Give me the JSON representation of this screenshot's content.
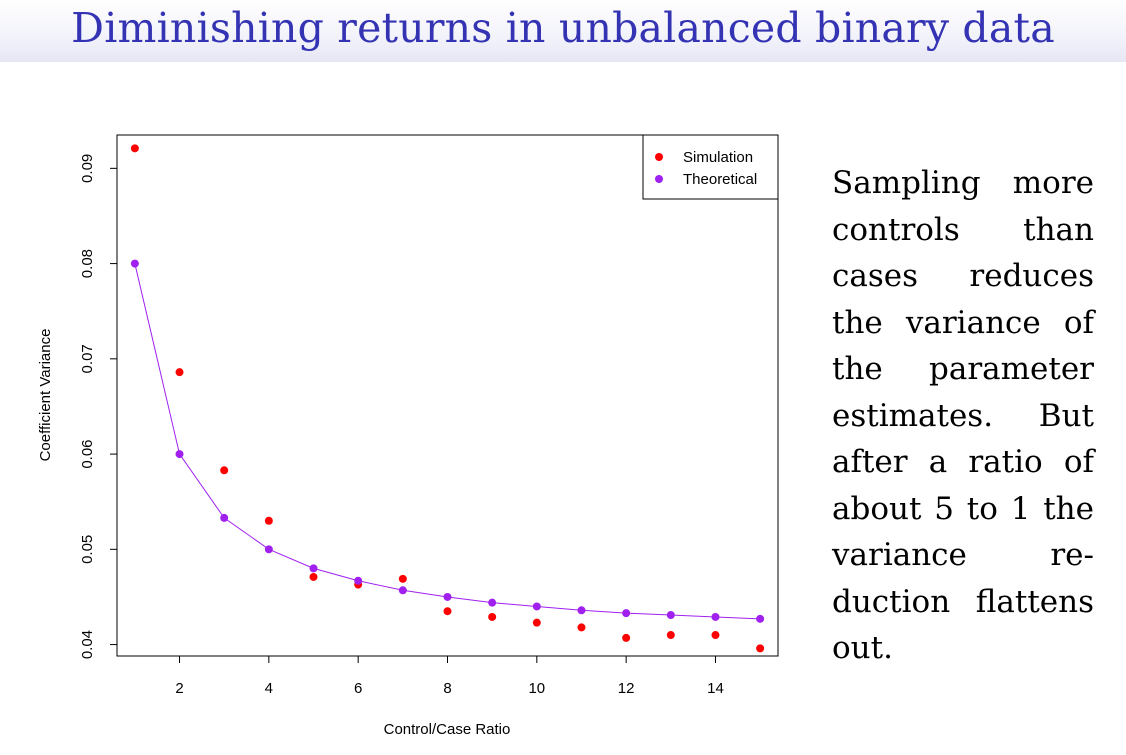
{
  "slide": {
    "title": "Diminishing returns in unbalanced binary data",
    "text": "Sampling more controls than cases reduces the variance of the parameter estimates. But after a ratio of about 5 to 1 the variance re­duction flattens out."
  },
  "colors": {
    "title": "#3333b3",
    "simulation": "#ff0000",
    "theoretical": "#a020f0"
  },
  "chart_data": {
    "type": "scatter",
    "title": "",
    "xlabel": "Control/Case Ratio",
    "ylabel": "Coefficient Variance",
    "xlim": [
      0.6,
      15.4
    ],
    "ylim": [
      0.0388,
      0.0935
    ],
    "xticks": [
      2,
      4,
      6,
      8,
      10,
      12,
      14
    ],
    "yticks": [
      0.04,
      0.05,
      0.06,
      0.07,
      0.08,
      0.09
    ],
    "xtick_labels": [
      "2",
      "4",
      "6",
      "8",
      "10",
      "12",
      "14"
    ],
    "ytick_labels": [
      "0.04",
      "0.05",
      "0.06",
      "0.07",
      "0.08",
      "0.09"
    ],
    "grid": false,
    "legend_position": "top-right",
    "x": [
      1,
      2,
      3,
      4,
      5,
      6,
      7,
      8,
      9,
      10,
      11,
      12,
      13,
      14,
      15
    ],
    "series": [
      {
        "name": "Simulation",
        "color": "#ff0000",
        "style": "points",
        "values": [
          0.0921,
          0.0686,
          0.0583,
          0.053,
          0.0471,
          0.0463,
          0.0469,
          0.0435,
          0.0429,
          0.0423,
          0.0418,
          0.0407,
          0.041,
          0.041,
          0.0396
        ]
      },
      {
        "name": "Theoretical",
        "color": "#a020f0",
        "style": "points+line",
        "values": [
          0.08,
          0.06,
          0.0533,
          0.05,
          0.048,
          0.0467,
          0.0457,
          0.045,
          0.0444,
          0.044,
          0.0436,
          0.0433,
          0.0431,
          0.0429,
          0.0427
        ]
      }
    ]
  }
}
